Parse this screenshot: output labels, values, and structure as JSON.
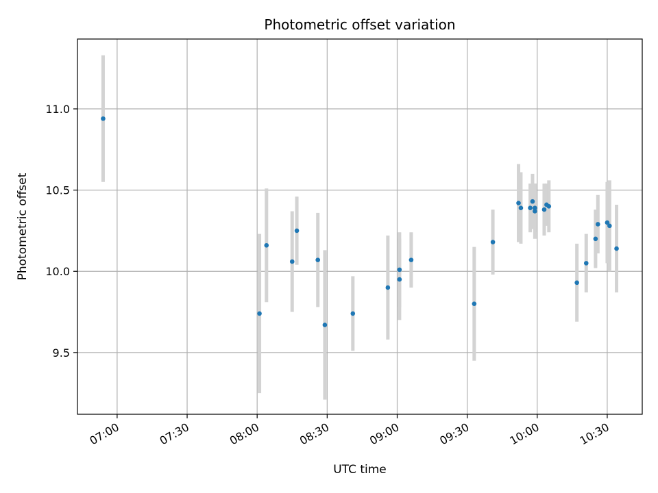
{
  "chart_data": {
    "type": "scatter",
    "title": "Photometric offset variation",
    "xlabel": "UTC time",
    "ylabel": "Photometric offset",
    "x_tick_values": [
      "07:00",
      "07:30",
      "08:00",
      "08:30",
      "09:00",
      "09:30",
      "10:00",
      "10:30"
    ],
    "y_tick_values": [
      9.5,
      10.0,
      10.5,
      11.0
    ],
    "y_tick_labels": [
      "9.5",
      "10.0",
      "10.5",
      "11.0"
    ],
    "xlim": [
      "06:43",
      "10:45"
    ],
    "ylim": [
      9.12,
      11.43
    ],
    "grid": true,
    "colors": {
      "point": "#1f77b4",
      "errorbar": "#d3d3d3"
    },
    "points": [
      {
        "x": "06:54",
        "y": 10.94,
        "err": 0.39
      },
      {
        "x": "08:01",
        "y": 9.74,
        "err": 0.49
      },
      {
        "x": "08:04",
        "y": 10.16,
        "err": 0.35
      },
      {
        "x": "08:15",
        "y": 10.06,
        "err": 0.31
      },
      {
        "x": "08:17",
        "y": 10.25,
        "err": 0.21
      },
      {
        "x": "08:26",
        "y": 10.07,
        "err": 0.29
      },
      {
        "x": "08:29",
        "y": 9.67,
        "err": 0.46
      },
      {
        "x": "08:41",
        "y": 9.74,
        "err": 0.23
      },
      {
        "x": "08:56",
        "y": 9.9,
        "err": 0.32
      },
      {
        "x": "09:01",
        "y": 9.95,
        "err": 0.25
      },
      {
        "x": "09:01",
        "y": 10.01,
        "err": 0.23
      },
      {
        "x": "09:06",
        "y": 10.07,
        "err": 0.17
      },
      {
        "x": "09:33",
        "y": 9.8,
        "err": 0.35
      },
      {
        "x": "09:41",
        "y": 10.18,
        "err": 0.2
      },
      {
        "x": "09:52",
        "y": 10.42,
        "err": 0.24
      },
      {
        "x": "09:53",
        "y": 10.39,
        "err": 0.22
      },
      {
        "x": "09:57",
        "y": 10.39,
        "err": 0.15
      },
      {
        "x": "09:58",
        "y": 10.43,
        "err": 0.17
      },
      {
        "x": "09:59",
        "y": 10.37,
        "err": 0.17
      },
      {
        "x": "09:59",
        "y": 10.39,
        "err": 0.15
      },
      {
        "x": "10:03",
        "y": 10.38,
        "err": 0.16
      },
      {
        "x": "10:04",
        "y": 10.41,
        "err": 0.13
      },
      {
        "x": "10:05",
        "y": 10.4,
        "err": 0.16
      },
      {
        "x": "10:17",
        "y": 9.93,
        "err": 0.24
      },
      {
        "x": "10:21",
        "y": 10.05,
        "err": 0.18
      },
      {
        "x": "10:25",
        "y": 10.2,
        "err": 0.18
      },
      {
        "x": "10:26",
        "y": 10.29,
        "err": 0.18
      },
      {
        "x": "10:30",
        "y": 10.3,
        "err": 0.25
      },
      {
        "x": "10:31",
        "y": 10.28,
        "err": 0.28
      },
      {
        "x": "10:34",
        "y": 10.14,
        "err": 0.27
      }
    ]
  }
}
